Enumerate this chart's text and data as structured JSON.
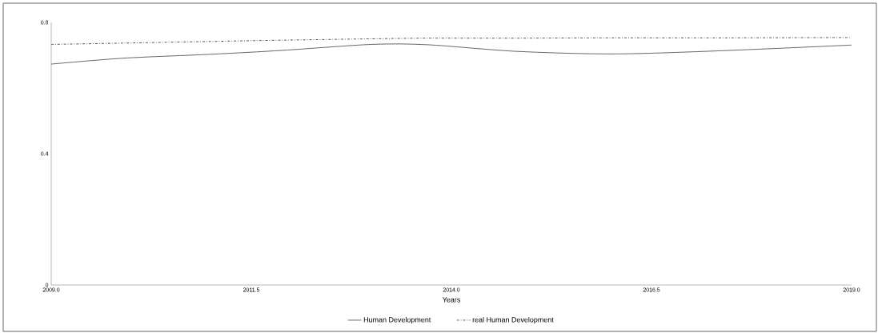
{
  "chart_data": {
    "type": "line",
    "xlabel": "Years",
    "x": [
      2009,
      2009.9,
      2011,
      2011.9,
      2013,
      2013.7,
      2014.8,
      2016,
      2017.3,
      2019
    ],
    "series": [
      {
        "name": "Human Development",
        "color": "#555555",
        "line_style": "solid",
        "values": [
          0.673,
          0.691,
          0.703,
          0.715,
          0.733,
          0.732,
          0.712,
          0.704,
          0.713,
          0.731
        ]
      },
      {
        "name": "real Human Development",
        "color": "#444444",
        "line_style": "dashdot",
        "values": [
          0.733,
          0.737,
          0.742,
          0.746,
          0.75,
          0.752,
          0.752,
          0.753,
          0.753,
          0.754
        ]
      }
    ],
    "xlim": [
      2009,
      2019
    ],
    "xticks": [
      {
        "value": 2009,
        "label": "2009.0"
      },
      {
        "value": 2011.5,
        "label": "2011.5"
      },
      {
        "value": 2014,
        "label": "2014.0"
      },
      {
        "value": 2016.5,
        "label": "2016.5"
      },
      {
        "value": 2019,
        "label": "2019.0"
      }
    ],
    "ylim": [
      0,
      0.8
    ],
    "yticks": [
      0,
      0.4,
      0.8
    ],
    "grid": false,
    "legend": "bottom",
    "marker": "none"
  }
}
